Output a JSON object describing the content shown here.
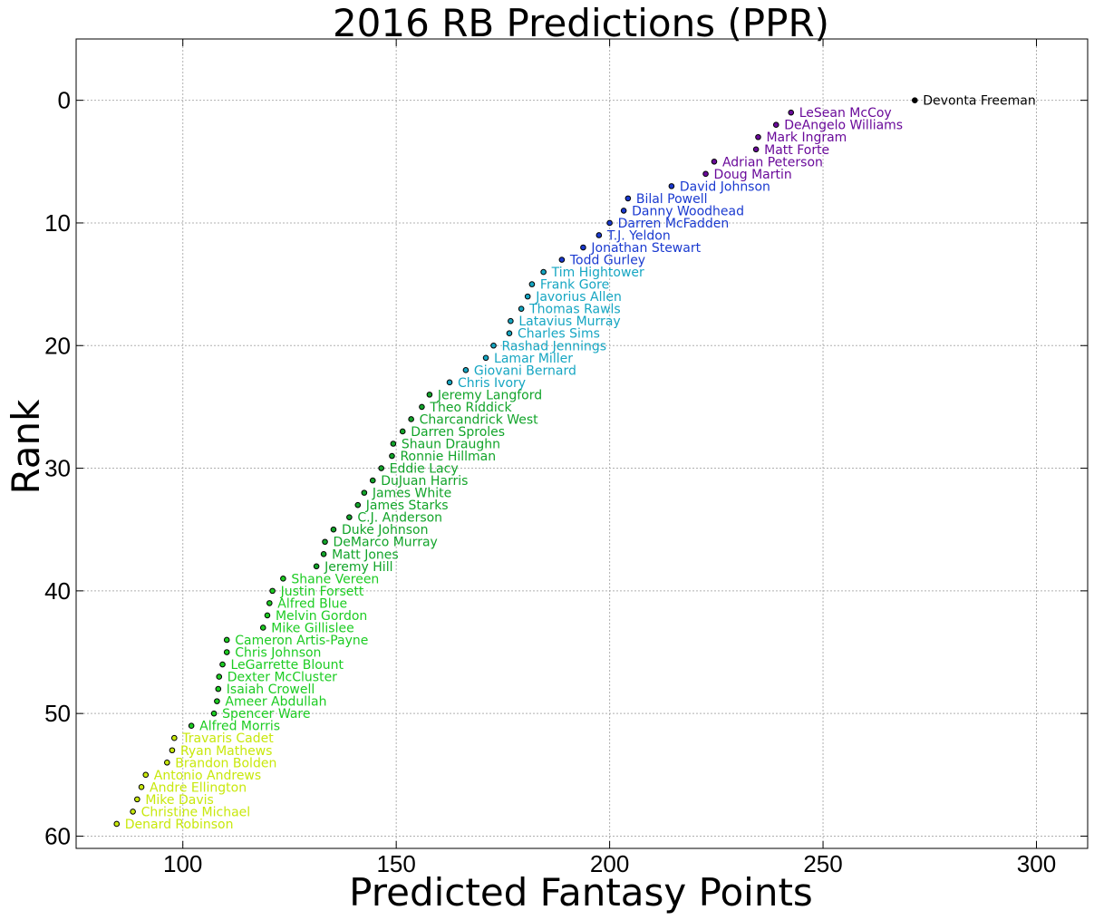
{
  "chart_data": {
    "type": "scatter",
    "title": "2016 RB Predictions (PPR)",
    "xlabel": "Predicted Fantasy Points",
    "ylabel": "Rank",
    "xlim": [
      75,
      312
    ],
    "ylim": [
      61,
      -5
    ],
    "y_inverted": true,
    "grid": true,
    "xticks": [
      100,
      150,
      200,
      250,
      300
    ],
    "yticks": [
      0,
      10,
      20,
      30,
      40,
      50,
      60
    ],
    "colormap": "viridis_r-like (black, purple, blue, teal, green, yellow)",
    "points": [
      {
        "name": "Devonta Freeman",
        "x": 271.5,
        "y": 0,
        "color": "#000000"
      },
      {
        "name": "LeSean McCoy",
        "x": 242.5,
        "y": 1,
        "color": "#6a0a9a"
      },
      {
        "name": "DeAngelo Williams",
        "x": 239.0,
        "y": 2,
        "color": "#6a0a9a"
      },
      {
        "name": "Mark Ingram",
        "x": 234.8,
        "y": 3,
        "color": "#6a0a9a"
      },
      {
        "name": "Matt Forte",
        "x": 234.3,
        "y": 4,
        "color": "#6a0a9a"
      },
      {
        "name": "Adrian Peterson",
        "x": 224.5,
        "y": 5,
        "color": "#6a0a9a"
      },
      {
        "name": "Doug Martin",
        "x": 222.5,
        "y": 6,
        "color": "#6a0a9a"
      },
      {
        "name": "David Johnson",
        "x": 214.5,
        "y": 7,
        "color": "#1a3ad0"
      },
      {
        "name": "Bilal Powell",
        "x": 204.3,
        "y": 8,
        "color": "#1a3ad0"
      },
      {
        "name": "Danny Woodhead",
        "x": 203.3,
        "y": 9,
        "color": "#1a3ad0"
      },
      {
        "name": "Darren McFadden",
        "x": 200.0,
        "y": 10,
        "color": "#1a3ad0"
      },
      {
        "name": "T.J. Yeldon",
        "x": 197.5,
        "y": 11,
        "color": "#1a3ad0"
      },
      {
        "name": "Jonathan Stewart",
        "x": 193.8,
        "y": 12,
        "color": "#1a3ad0"
      },
      {
        "name": "Todd Gurley",
        "x": 188.8,
        "y": 13,
        "color": "#1a3ad0"
      },
      {
        "name": "Tim Hightower",
        "x": 184.5,
        "y": 14,
        "color": "#16a6c2"
      },
      {
        "name": "Frank Gore",
        "x": 181.8,
        "y": 15,
        "color": "#16a6c2"
      },
      {
        "name": "Javorius Allen",
        "x": 180.8,
        "y": 16,
        "color": "#16a6c2"
      },
      {
        "name": "Thomas Rawls",
        "x": 179.3,
        "y": 17,
        "color": "#16a6c2"
      },
      {
        "name": "Latavius Murray",
        "x": 176.8,
        "y": 18,
        "color": "#16a6c2"
      },
      {
        "name": "Charles Sims",
        "x": 176.5,
        "y": 19,
        "color": "#16a6c2"
      },
      {
        "name": "Rashad Jennings",
        "x": 172.8,
        "y": 20,
        "color": "#16a6c2"
      },
      {
        "name": "Lamar Miller",
        "x": 171.0,
        "y": 21,
        "color": "#16a6c2"
      },
      {
        "name": "Giovani Bernard",
        "x": 166.3,
        "y": 22,
        "color": "#16a6c2"
      },
      {
        "name": "Chris Ivory",
        "x": 162.5,
        "y": 23,
        "color": "#16a6c2"
      },
      {
        "name": "Jeremy Langford",
        "x": 157.8,
        "y": 24,
        "color": "#12a42a"
      },
      {
        "name": "Theo Riddick",
        "x": 156.0,
        "y": 25,
        "color": "#12a42a"
      },
      {
        "name": "Charcandrick West",
        "x": 153.5,
        "y": 26,
        "color": "#12a42a"
      },
      {
        "name": "Darren Sproles",
        "x": 151.5,
        "y": 27,
        "color": "#12a42a"
      },
      {
        "name": "Shaun Draughn",
        "x": 149.3,
        "y": 28,
        "color": "#12a42a"
      },
      {
        "name": "Ronnie Hillman",
        "x": 149.0,
        "y": 29,
        "color": "#12a42a"
      },
      {
        "name": "Eddie Lacy",
        "x": 146.5,
        "y": 30,
        "color": "#12a42a"
      },
      {
        "name": "DuJuan Harris",
        "x": 144.5,
        "y": 31,
        "color": "#12a42a"
      },
      {
        "name": "James White",
        "x": 142.5,
        "y": 32,
        "color": "#12a42a"
      },
      {
        "name": "James Starks",
        "x": 141.0,
        "y": 33,
        "color": "#12a42a"
      },
      {
        "name": "C.J. Anderson",
        "x": 139.0,
        "y": 34,
        "color": "#12a42a"
      },
      {
        "name": "Duke Johnson",
        "x": 135.3,
        "y": 35,
        "color": "#12a42a"
      },
      {
        "name": "DeMarco Murray",
        "x": 133.3,
        "y": 36,
        "color": "#12a42a"
      },
      {
        "name": "Matt Jones",
        "x": 133.0,
        "y": 37,
        "color": "#12a42a"
      },
      {
        "name": "Jeremy Hill",
        "x": 131.3,
        "y": 38,
        "color": "#12a42a"
      },
      {
        "name": "Shane Vereen",
        "x": 123.5,
        "y": 39,
        "color": "#1ccc22"
      },
      {
        "name": "Justin Forsett",
        "x": 121.0,
        "y": 40,
        "color": "#1ccc22"
      },
      {
        "name": "Alfred Blue",
        "x": 120.3,
        "y": 41,
        "color": "#1ccc22"
      },
      {
        "name": "Melvin Gordon",
        "x": 119.8,
        "y": 42,
        "color": "#1ccc22"
      },
      {
        "name": "Mike Gillislee",
        "x": 118.8,
        "y": 43,
        "color": "#1ccc22"
      },
      {
        "name": "Cameron Artis-Payne",
        "x": 110.3,
        "y": 44,
        "color": "#1ccc22"
      },
      {
        "name": "Chris Johnson",
        "x": 110.3,
        "y": 45,
        "color": "#1ccc22"
      },
      {
        "name": "LeGarrette Blount",
        "x": 109.3,
        "y": 46,
        "color": "#1ccc22"
      },
      {
        "name": "Dexter McCluster",
        "x": 108.5,
        "y": 47,
        "color": "#1ccc22"
      },
      {
        "name": "Isaiah Crowell",
        "x": 108.3,
        "y": 48,
        "color": "#1ccc22"
      },
      {
        "name": "Ameer Abdullah",
        "x": 108.0,
        "y": 49,
        "color": "#1ccc22"
      },
      {
        "name": "Spencer Ware",
        "x": 107.3,
        "y": 50,
        "color": "#1ccc22"
      },
      {
        "name": "Alfred Morris",
        "x": 102.0,
        "y": 51,
        "color": "#1ccc22"
      },
      {
        "name": "Travaris Cadet",
        "x": 98.0,
        "y": 52,
        "color": "#c8e80c"
      },
      {
        "name": "Ryan Mathews",
        "x": 97.5,
        "y": 53,
        "color": "#c8e80c"
      },
      {
        "name": "Brandon Bolden",
        "x": 96.3,
        "y": 54,
        "color": "#c8e80c"
      },
      {
        "name": "Antonio Andrews",
        "x": 91.3,
        "y": 55,
        "color": "#c8e80c"
      },
      {
        "name": "Andre Ellington",
        "x": 90.3,
        "y": 56,
        "color": "#c8e80c"
      },
      {
        "name": "Mike Davis",
        "x": 89.3,
        "y": 57,
        "color": "#c8e80c"
      },
      {
        "name": "Christine Michael",
        "x": 88.3,
        "y": 58,
        "color": "#c8e80c"
      },
      {
        "name": "Denard Robinson",
        "x": 84.5,
        "y": 59,
        "color": "#c8e80c"
      }
    ]
  }
}
